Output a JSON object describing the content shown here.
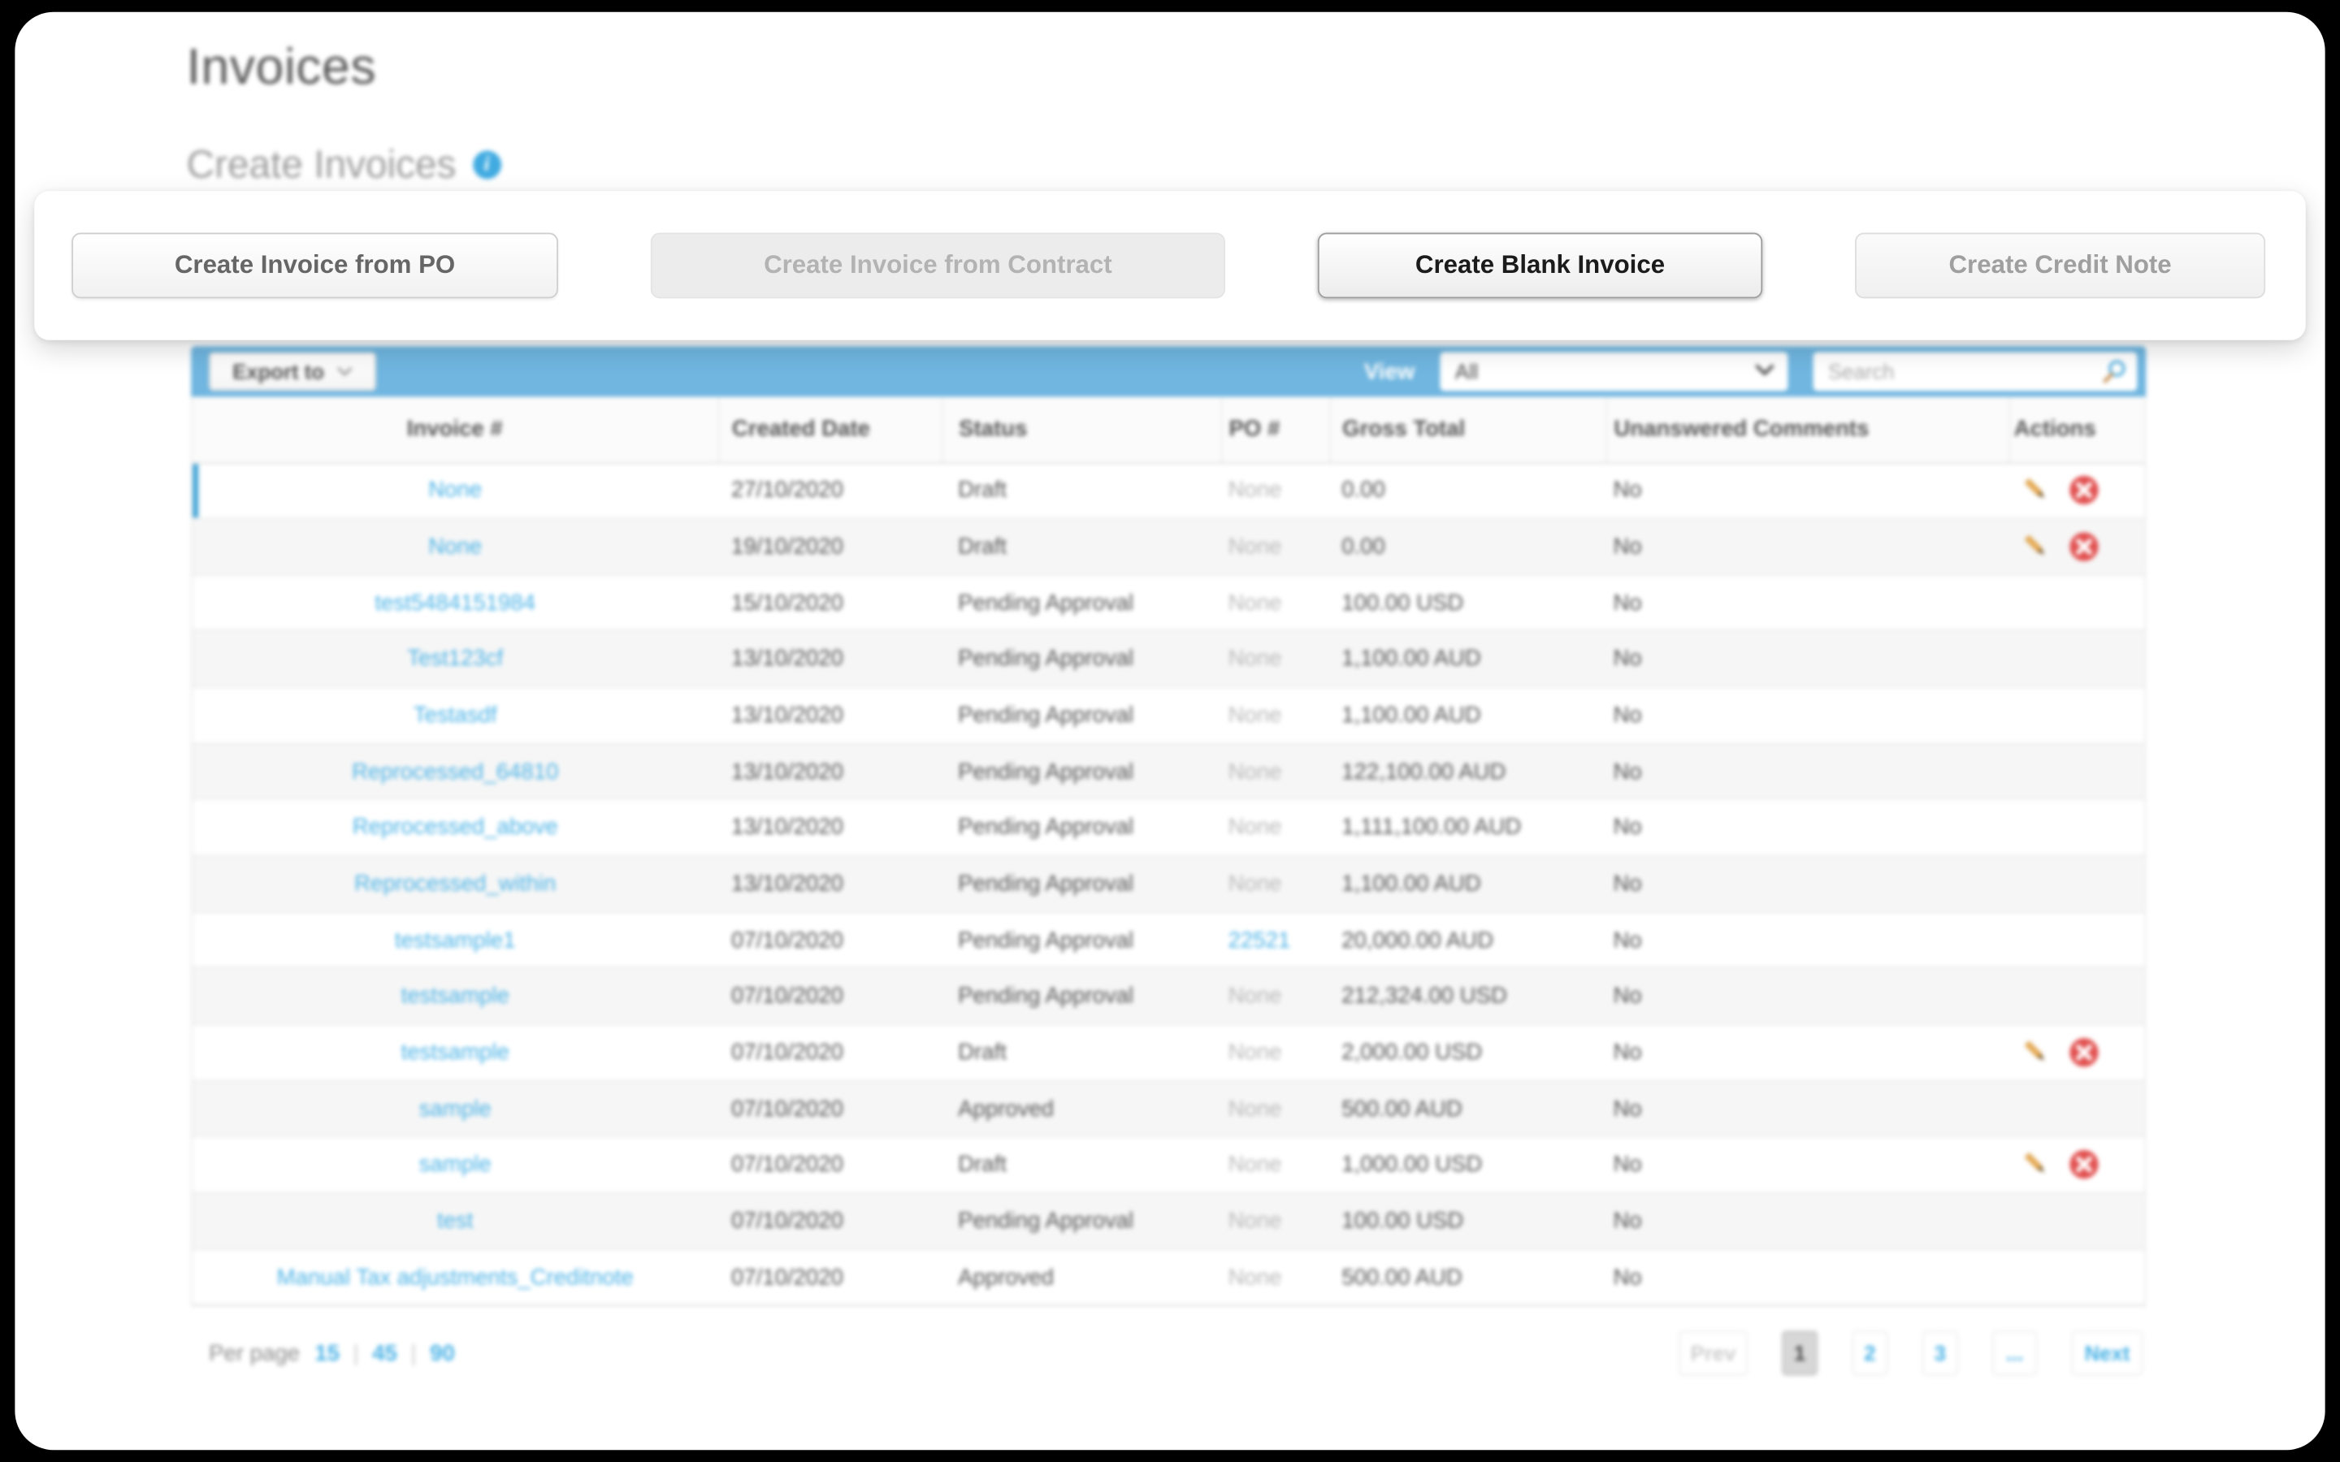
{
  "page": {
    "title": "Invoices",
    "section_title": "Create Invoices"
  },
  "icons": {
    "info": "i"
  },
  "buttons": [
    {
      "label": "Create Invoice from PO",
      "state": "enabled"
    },
    {
      "label": "Create Invoice from Contract",
      "state": "disabled"
    },
    {
      "label": "Create Blank Invoice",
      "state": "active"
    },
    {
      "label": "Create Credit Note",
      "state": "muted"
    }
  ],
  "toolbar": {
    "export_label": "Export to",
    "view_label": "View",
    "view_value": "All",
    "search_placeholder": "Search"
  },
  "table": {
    "columns": [
      "Invoice #",
      "Created Date",
      "Status",
      "PO #",
      "Gross Total",
      "Unanswered Comments",
      "Actions"
    ],
    "rows": [
      {
        "invoice": "None",
        "created": "27/10/2020",
        "status": "Draft",
        "po": "None",
        "po_link": false,
        "gross": "0.00",
        "comments": "No",
        "actions": true,
        "selected": true
      },
      {
        "invoice": "None",
        "created": "19/10/2020",
        "status": "Draft",
        "po": "None",
        "po_link": false,
        "gross": "0.00",
        "comments": "No",
        "actions": true,
        "selected": false
      },
      {
        "invoice": "test5484151984",
        "created": "15/10/2020",
        "status": "Pending Approval",
        "po": "None",
        "po_link": false,
        "gross": "100.00 USD",
        "comments": "No",
        "actions": false,
        "selected": false
      },
      {
        "invoice": "Test123cf",
        "created": "13/10/2020",
        "status": "Pending Approval",
        "po": "None",
        "po_link": false,
        "gross": "1,100.00 AUD",
        "comments": "No",
        "actions": false,
        "selected": false
      },
      {
        "invoice": "Testasdf",
        "created": "13/10/2020",
        "status": "Pending Approval",
        "po": "None",
        "po_link": false,
        "gross": "1,100.00 AUD",
        "comments": "No",
        "actions": false,
        "selected": false
      },
      {
        "invoice": "Reprocessed_64810",
        "created": "13/10/2020",
        "status": "Pending Approval",
        "po": "None",
        "po_link": false,
        "gross": "122,100.00 AUD",
        "comments": "No",
        "actions": false,
        "selected": false
      },
      {
        "invoice": "Reprocessed_above",
        "created": "13/10/2020",
        "status": "Pending Approval",
        "po": "None",
        "po_link": false,
        "gross": "1,111,100.00 AUD",
        "comments": "No",
        "actions": false,
        "selected": false
      },
      {
        "invoice": "Reprocessed_within",
        "created": "13/10/2020",
        "status": "Pending Approval",
        "po": "None",
        "po_link": false,
        "gross": "1,100.00 AUD",
        "comments": "No",
        "actions": false,
        "selected": false
      },
      {
        "invoice": "testsample1",
        "created": "07/10/2020",
        "status": "Pending Approval",
        "po": "22521",
        "po_link": true,
        "gross": "20,000.00 AUD",
        "comments": "No",
        "actions": false,
        "selected": false
      },
      {
        "invoice": "testsample",
        "created": "07/10/2020",
        "status": "Pending Approval",
        "po": "None",
        "po_link": false,
        "gross": "212,324.00 USD",
        "comments": "No",
        "actions": false,
        "selected": false
      },
      {
        "invoice": "testsample",
        "created": "07/10/2020",
        "status": "Draft",
        "po": "None",
        "po_link": false,
        "gross": "2,000.00 USD",
        "comments": "No",
        "actions": true,
        "selected": false
      },
      {
        "invoice": "sample",
        "created": "07/10/2020",
        "status": "Approved",
        "po": "None",
        "po_link": false,
        "gross": "500.00 AUD",
        "comments": "No",
        "actions": false,
        "selected": false
      },
      {
        "invoice": "sample",
        "created": "07/10/2020",
        "status": "Draft",
        "po": "None",
        "po_link": false,
        "gross": "1,000.00 USD",
        "comments": "No",
        "actions": true,
        "selected": false
      },
      {
        "invoice": "test",
        "created": "07/10/2020",
        "status": "Pending Approval",
        "po": "None",
        "po_link": false,
        "gross": "100.00 USD",
        "comments": "No",
        "actions": false,
        "selected": false
      },
      {
        "invoice": "Manual Tax adjustments_Creditnote",
        "created": "07/10/2020",
        "status": "Approved",
        "po": "None",
        "po_link": false,
        "gross": "500.00 AUD",
        "comments": "No",
        "actions": false,
        "selected": false
      }
    ]
  },
  "footer": {
    "per_page_label": "Per page",
    "per_page_options": [
      "15",
      "45",
      "90"
    ],
    "separator": "|",
    "pagination": [
      {
        "label": "Prev",
        "type": "prev"
      },
      {
        "label": "1",
        "type": "current"
      },
      {
        "label": "2",
        "type": "page"
      },
      {
        "label": "3",
        "type": "page"
      },
      {
        "label": "...",
        "type": "ellipsis"
      },
      {
        "label": "Next",
        "type": "next"
      }
    ]
  },
  "colors": {
    "toolbar_blue": "#70b6e0",
    "link_blue": "#4ab2e6",
    "selected_row_accent": "#49a8d8",
    "delete_red": "#e25050",
    "pencil_tan": "#e8ac54",
    "info_blue": "#41abe1"
  }
}
